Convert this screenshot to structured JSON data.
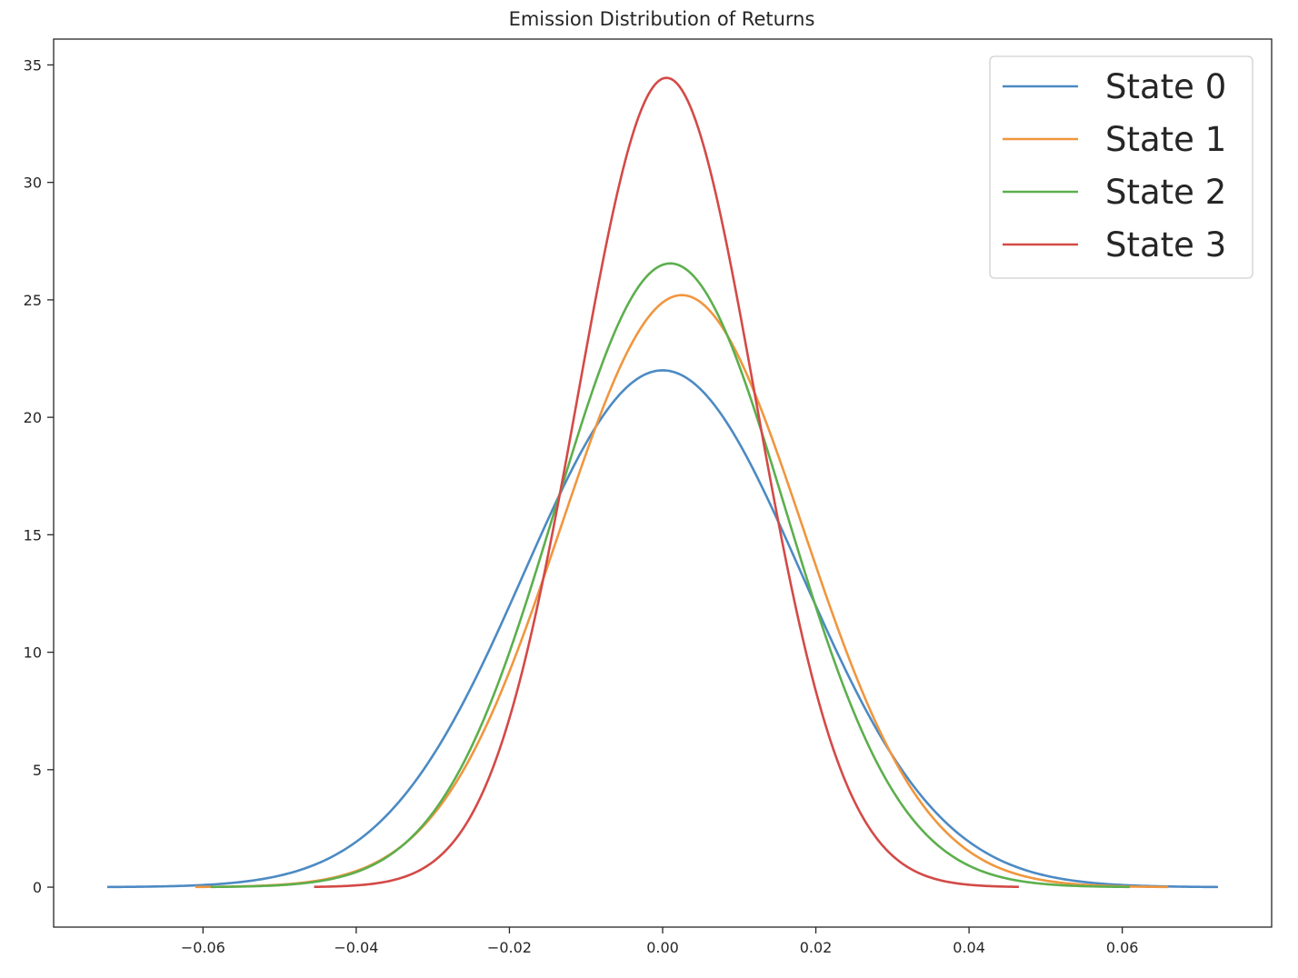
{
  "chart_data": {
    "type": "line",
    "title": "Emission Distribution of Returns",
    "xlabel": "",
    "ylabel": "",
    "xlim": [
      -0.0795,
      0.0795
    ],
    "ylim": [
      -1.7,
      36.1
    ],
    "x_ticks": [
      -0.06,
      -0.04,
      -0.02,
      0.0,
      0.02,
      0.04,
      0.06
    ],
    "x_tick_labels": [
      "−0.06",
      "−0.04",
      "−0.02",
      "0.00",
      "0.02",
      "0.04",
      "0.06"
    ],
    "y_ticks": [
      0,
      5,
      10,
      15,
      20,
      25,
      30,
      35
    ],
    "y_tick_labels": [
      "0",
      "5",
      "10",
      "15",
      "20",
      "25",
      "30",
      "35"
    ],
    "grid": false,
    "legend_position": "top-right",
    "series": [
      {
        "name": "State 0",
        "color": "#4c8ac3",
        "mean": 0.0,
        "peak": 22.0,
        "x_range": [
          -0.0725,
          0.0725
        ]
      },
      {
        "name": "State 1",
        "color": "#f0963e",
        "mean": 0.0025,
        "peak": 25.2,
        "x_range": [
          -0.061,
          0.066
        ]
      },
      {
        "name": "State 2",
        "color": "#5caf4d",
        "mean": 0.001,
        "peak": 26.55,
        "x_range": [
          -0.059,
          0.061
        ]
      },
      {
        "name": "State 3",
        "color": "#d34a47",
        "mean": 0.0005,
        "peak": 34.45,
        "x_range": [
          -0.0455,
          0.0465
        ]
      }
    ]
  }
}
